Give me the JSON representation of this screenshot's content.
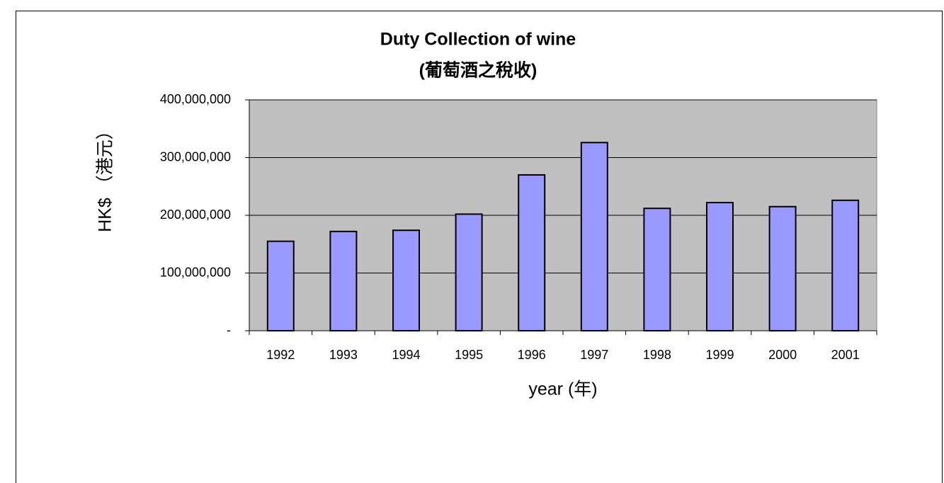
{
  "chart_data": {
    "type": "bar",
    "title": "Duty Collection of wine",
    "subtitle": "(葡萄酒之稅收)",
    "x_label": "year (年)",
    "y_label": "HK$ （港元）",
    "categories": [
      "1992",
      "1993",
      "1994",
      "1995",
      "1996",
      "1997",
      "1998",
      "1999",
      "2000",
      "2001"
    ],
    "values": [
      155000000,
      172000000,
      174000000,
      202000000,
      270000000,
      326000000,
      212000000,
      222000000,
      215000000,
      226000000
    ],
    "color": "#9999ff",
    "ylim": [
      0,
      400000000
    ],
    "yticks": [
      {
        "value": 0,
        "label": "-"
      },
      {
        "value": 100000000,
        "label": "100,000,000"
      },
      {
        "value": 200000000,
        "label": "200,000,000"
      },
      {
        "value": 300000000,
        "label": "300,000,000"
      },
      {
        "value": 400000000,
        "label": "400,000,000"
      }
    ],
    "grid": true
  }
}
